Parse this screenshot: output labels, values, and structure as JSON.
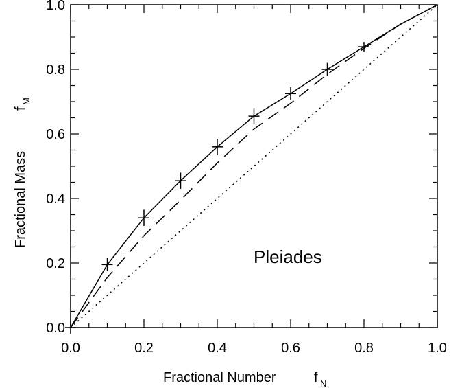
{
  "chart_data": {
    "type": "line",
    "title": "",
    "annotation": "Pleiades",
    "xlabel": {
      "main": "Fractional  Number",
      "symbol": "f",
      "subscript": "N"
    },
    "ylabel": {
      "main": "Fractional  Mass",
      "symbol": "f",
      "subscript": "M"
    },
    "xlim": [
      0.0,
      1.0
    ],
    "ylim": [
      0.0,
      1.0
    ],
    "xticks": [
      "0.0",
      "0.2",
      "0.4",
      "0.6",
      "0.8",
      "1.0"
    ],
    "yticks": [
      "0.0",
      "0.2",
      "0.4",
      "0.6",
      "0.8",
      "1.0"
    ],
    "grid": false,
    "series": [
      {
        "style": "solid",
        "x": [
          0.0,
          0.1,
          0.2,
          0.3,
          0.4,
          0.5,
          0.6,
          0.7,
          0.8,
          0.9,
          1.0
        ],
        "y": [
          0.0,
          0.195,
          0.34,
          0.455,
          0.56,
          0.655,
          0.725,
          0.8,
          0.87,
          0.94,
          1.0
        ],
        "yerr": [
          0.02,
          0.02,
          0.025,
          0.025,
          0.025,
          0.025,
          0.02,
          0.02,
          0.015,
          0.0,
          0.0
        ]
      },
      {
        "style": "dashed",
        "x": [
          0.0,
          0.1,
          0.2,
          0.3,
          0.4,
          0.5,
          0.6,
          0.7,
          0.8,
          0.9,
          1.0
        ],
        "y": [
          0.0,
          0.155,
          0.285,
          0.395,
          0.51,
          0.615,
          0.695,
          0.785,
          0.865,
          0.94,
          1.0
        ]
      },
      {
        "style": "dotted",
        "x": [
          0.0,
          1.0
        ],
        "y": [
          0.0,
          1.0
        ]
      }
    ]
  }
}
